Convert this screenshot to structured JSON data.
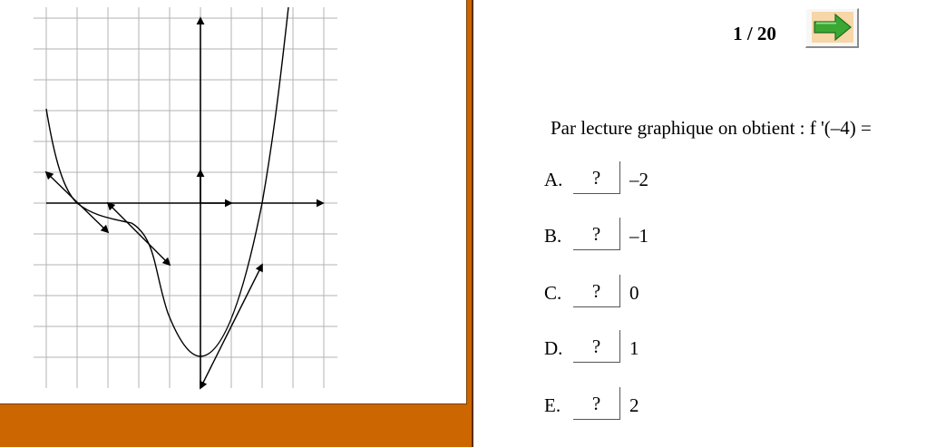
{
  "navigation": {
    "counter": "1 / 20",
    "next_icon": "green-right-arrow-icon"
  },
  "question": {
    "text": "Par lecture graphique on obtient : f '(–4) ="
  },
  "options": [
    {
      "letter": "A.",
      "button": "?",
      "value": "–2"
    },
    {
      "letter": "B.",
      "button": "?",
      "value": "–1"
    },
    {
      "letter": "C.",
      "button": "?",
      "value": "0"
    },
    {
      "letter": "D.",
      "button": "?",
      "value": "1"
    },
    {
      "letter": "E.",
      "button": "?",
      "value": "2"
    }
  ],
  "colors": {
    "panel_accent": "#cc6600",
    "arrow_green": "#3aa832",
    "arrow_bg": "#f7d6a8",
    "grid": "#b3b3b3"
  }
}
